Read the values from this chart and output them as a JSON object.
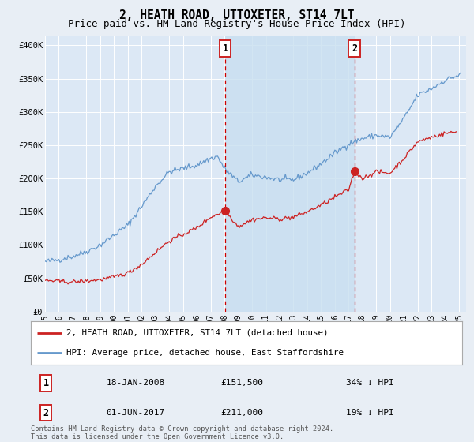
{
  "title": "2, HEATH ROAD, UTTOXETER, ST14 7LT",
  "subtitle": "Price paid vs. HM Land Registry's House Price Index (HPI)",
  "title_fontsize": 10.5,
  "subtitle_fontsize": 9,
  "ylabel_ticks": [
    "£0",
    "£50K",
    "£100K",
    "£150K",
    "£200K",
    "£250K",
    "£300K",
    "£350K",
    "£400K"
  ],
  "ytick_values": [
    0,
    50000,
    100000,
    150000,
    200000,
    250000,
    300000,
    350000,
    400000
  ],
  "ylim": [
    0,
    415000
  ],
  "xlim_start": 1995.0,
  "xlim_end": 2025.5,
  "background_color": "#e8eef5",
  "plot_bg_color": "#dce8f5",
  "shade_color": "#c8dff0",
  "grid_color": "#ffffff",
  "hpi_line_color": "#6699cc",
  "price_line_color": "#cc2222",
  "marker1_x": 2008.05,
  "marker1_y": 151500,
  "marker2_x": 2017.42,
  "marker2_y": 211000,
  "legend_label1": "2, HEATH ROAD, UTTOXETER, ST14 7LT (detached house)",
  "legend_label2": "HPI: Average price, detached house, East Staffordshire",
  "annot1_label": "1",
  "annot2_label": "2",
  "annot1_date": "18-JAN-2008",
  "annot1_price": "£151,500",
  "annot1_hpi": "34% ↓ HPI",
  "annot2_date": "01-JUN-2017",
  "annot2_price": "£211,000",
  "annot2_hpi": "19% ↓ HPI",
  "footer": "Contains HM Land Registry data © Crown copyright and database right 2024.\nThis data is licensed under the Open Government Licence v3.0.",
  "xtick_years": [
    1995,
    1996,
    1997,
    1998,
    1999,
    2000,
    2001,
    2002,
    2003,
    2004,
    2005,
    2006,
    2007,
    2008,
    2009,
    2010,
    2011,
    2012,
    2013,
    2014,
    2015,
    2016,
    2017,
    2018,
    2019,
    2020,
    2021,
    2022,
    2023,
    2024,
    2025
  ],
  "hpi_anchors_t": [
    1995.0,
    1996.0,
    1997.0,
    1998.0,
    1999.0,
    2000.0,
    2001.0,
    2002.0,
    2003.0,
    2004.0,
    2005.0,
    2006.0,
    2007.0,
    2007.5,
    2008.0,
    2009.0,
    2010.0,
    2011.0,
    2012.0,
    2013.0,
    2014.0,
    2015.0,
    2016.0,
    2017.0,
    2018.0,
    2019.0,
    2020.0,
    2021.0,
    2022.0,
    2023.0,
    2024.0,
    2025.0
  ],
  "hpi_anchors_y": [
    75000,
    78000,
    83000,
    90000,
    100000,
    115000,
    130000,
    158000,
    188000,
    210000,
    215000,
    220000,
    230000,
    233000,
    215000,
    195000,
    205000,
    202000,
    198000,
    198000,
    208000,
    222000,
    238000,
    252000,
    260000,
    265000,
    262000,
    290000,
    325000,
    335000,
    348000,
    355000
  ],
  "price_anchors_t": [
    1995.0,
    1996.0,
    1997.0,
    1998.0,
    1999.0,
    2000.0,
    2001.0,
    2002.0,
    2003.0,
    2004.0,
    2005.0,
    2006.0,
    2007.0,
    2008.05,
    2008.6,
    2009.0,
    2010.0,
    2011.0,
    2012.0,
    2013.0,
    2014.0,
    2015.0,
    2016.0,
    2017.0,
    2017.42,
    2018.0,
    2019.0,
    2020.0,
    2021.0,
    2022.0,
    2023.0,
    2024.0,
    2024.8
  ],
  "price_anchors_y": [
    47000,
    45500,
    44500,
    46000,
    48000,
    52000,
    58000,
    71000,
    89000,
    106000,
    116000,
    126000,
    142000,
    151500,
    138000,
    128000,
    138000,
    141000,
    139000,
    142000,
    150000,
    160000,
    172000,
    183000,
    211000,
    200000,
    210000,
    208000,
    230000,
    255000,
    262000,
    268000,
    270000
  ]
}
